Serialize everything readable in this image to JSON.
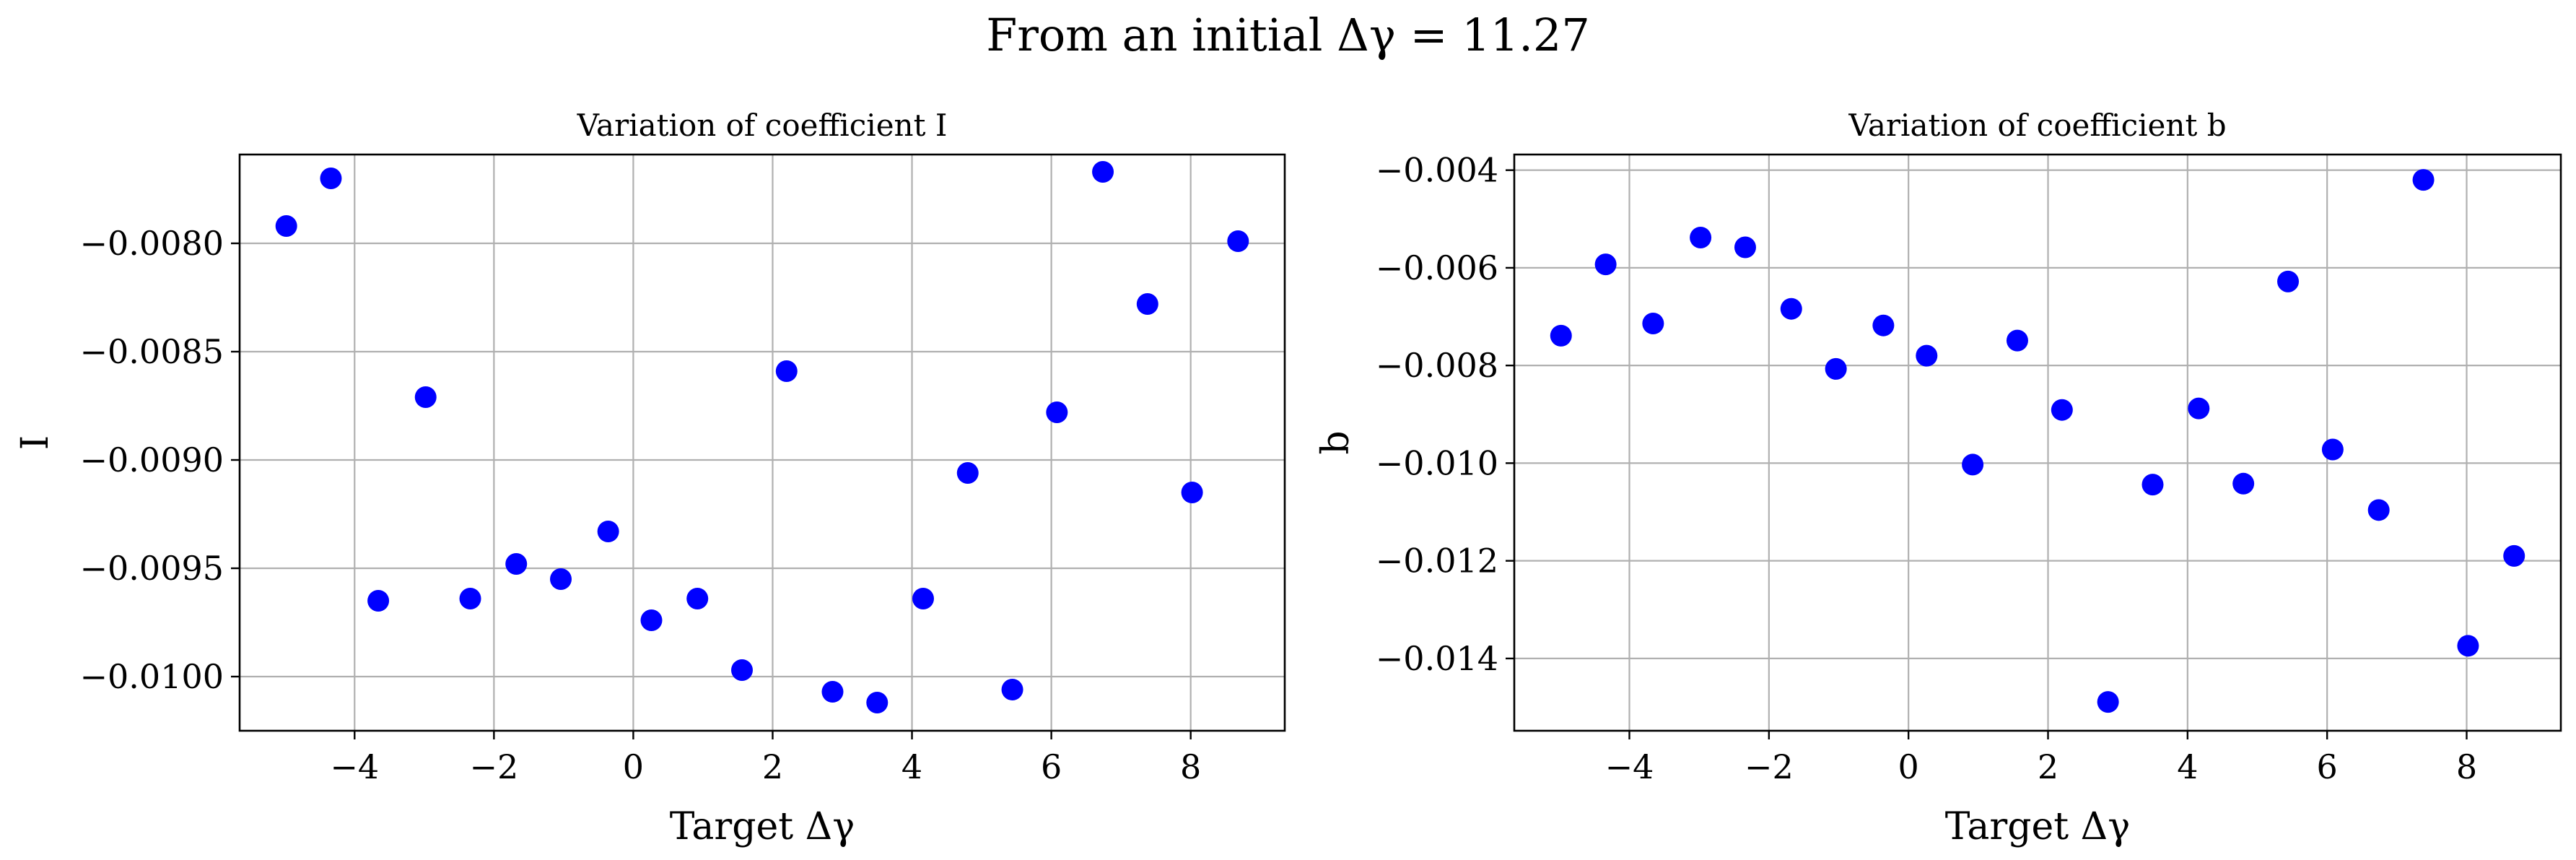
{
  "figure": {
    "suptitle": "From an initial Δγ = 11.27"
  },
  "chart_data": [
    {
      "type": "scatter",
      "title": "Variation of coefficient I",
      "xlabel": "Target Δγ",
      "ylabel": "I",
      "xlim": [
        -5.65,
        9.35
      ],
      "ylim": [
        -0.01025,
        -0.00759
      ],
      "xticks": [
        -4,
        -2,
        0,
        2,
        4,
        6,
        8
      ],
      "xtick_labels": [
        "−4",
        "−2",
        "0",
        "2",
        "4",
        "6",
        "8"
      ],
      "yticks": [
        -0.008,
        -0.0085,
        -0.009,
        -0.0095,
        -0.01
      ],
      "ytick_labels": [
        "−0.0080",
        "−0.0085",
        "−0.0090",
        "−0.0095",
        "−0.0100"
      ],
      "grid": true,
      "color": "#0000ff",
      "x": [
        -4.98,
        -4.34,
        -3.66,
        -2.98,
        -2.34,
        -1.68,
        -1.04,
        -0.36,
        0.26,
        0.92,
        1.56,
        2.2,
        2.86,
        3.5,
        4.16,
        4.8,
        5.44,
        6.08,
        6.74,
        7.38,
        8.02,
        8.68
      ],
      "y": [
        -0.00792,
        -0.0077,
        -0.00965,
        -0.00871,
        -0.00964,
        -0.00948,
        -0.00955,
        -0.00933,
        -0.00974,
        -0.00964,
        -0.00997,
        -0.00859,
        -0.01007,
        -0.01012,
        -0.00964,
        -0.00906,
        -0.01006,
        -0.00878,
        -0.00767,
        -0.00828,
        -0.00915,
        -0.00799
      ]
    },
    {
      "type": "scatter",
      "title": "Variation of coefficient b",
      "xlabel": "Target Δγ",
      "ylabel": "b",
      "xlim": [
        -5.65,
        9.35
      ],
      "ylim": [
        -0.01548,
        -0.00368
      ],
      "xticks": [
        -4,
        -2,
        0,
        2,
        4,
        6,
        8
      ],
      "xtick_labels": [
        "−4",
        "−2",
        "0",
        "2",
        "4",
        "6",
        "8"
      ],
      "yticks": [
        -0.004,
        -0.006,
        -0.008,
        -0.01,
        -0.012,
        -0.014
      ],
      "ytick_labels": [
        "−0.004",
        "−0.006",
        "−0.008",
        "−0.010",
        "−0.012",
        "−0.014"
      ],
      "grid": true,
      "color": "#0000ff",
      "x": [
        -4.98,
        -4.34,
        -3.66,
        -2.98,
        -2.34,
        -1.68,
        -1.04,
        -0.36,
        0.26,
        0.92,
        1.56,
        2.2,
        2.86,
        3.5,
        4.16,
        4.8,
        5.44,
        6.08,
        6.74,
        7.38,
        8.02,
        8.68
      ],
      "y": [
        -0.00739,
        -0.00593,
        -0.00714,
        -0.00538,
        -0.00558,
        -0.00684,
        -0.00807,
        -0.00718,
        -0.0078,
        -0.01003,
        -0.00749,
        -0.00891,
        -0.01489,
        -0.01044,
        -0.00888,
        -0.01042,
        -0.00628,
        -0.00972,
        -0.01096,
        -0.0042,
        -0.01374,
        -0.0119
      ]
    }
  ]
}
